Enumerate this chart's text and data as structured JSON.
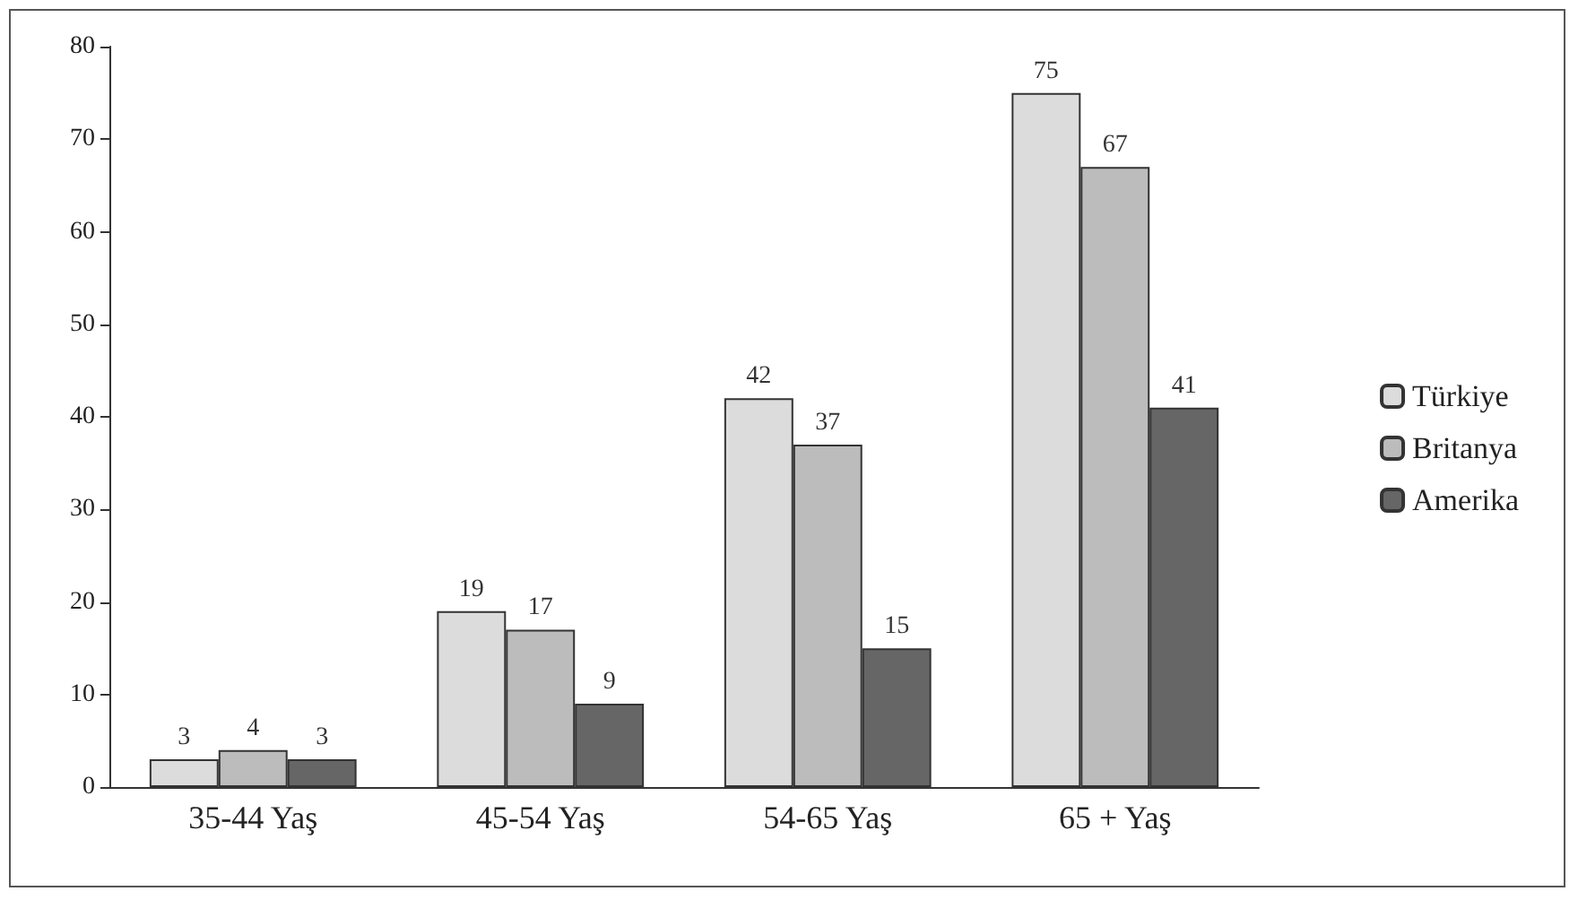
{
  "chart_data": {
    "type": "bar",
    "categories": [
      "35-44 Yaş",
      "45-54 Yaş",
      "54-65 Yaş",
      "65 + Yaş"
    ],
    "series": [
      {
        "name": "Türkiye",
        "color": "#dcdcdc",
        "values": [
          3,
          19,
          42,
          75
        ]
      },
      {
        "name": "Britanya",
        "color": "#bcbcbc",
        "values": [
          4,
          17,
          37,
          67
        ]
      },
      {
        "name": "Amerika",
        "color": "#666666",
        "values": [
          3,
          9,
          15,
          41
        ]
      }
    ],
    "ylim": [
      0,
      80
    ],
    "yticks": [
      0,
      10,
      20,
      30,
      40,
      50,
      60,
      70,
      80
    ],
    "grid": false,
    "legend": "right",
    "data_labels": true
  }
}
